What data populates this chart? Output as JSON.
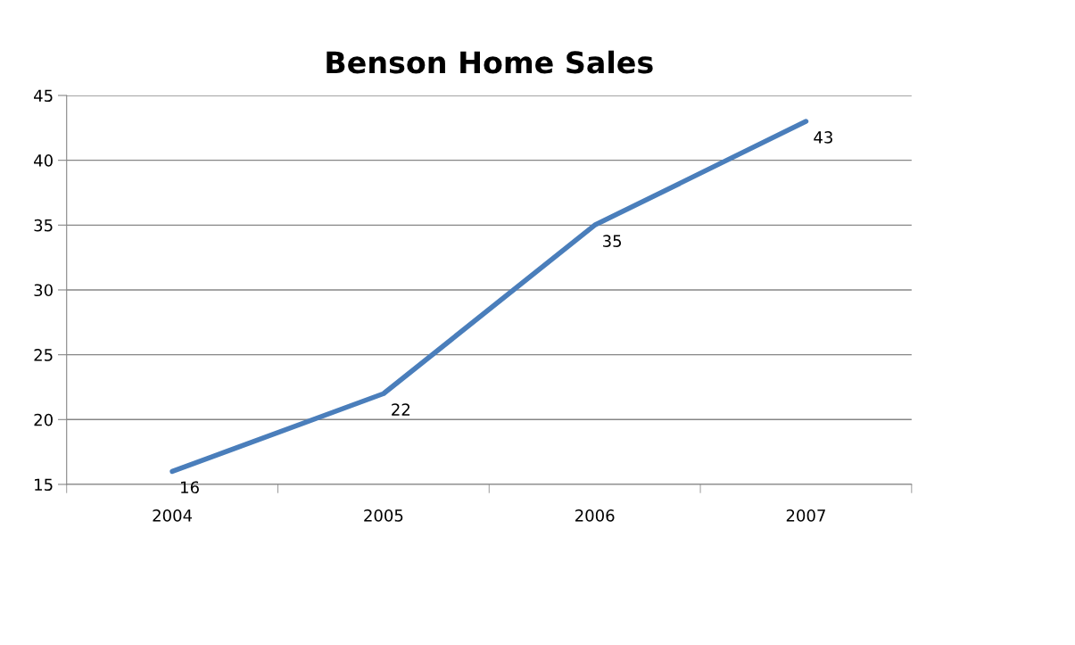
{
  "chart_data": {
    "type": "line",
    "title": "Benson Home Sales",
    "categories": [
      "2004",
      "2005",
      "2006",
      "2007"
    ],
    "series": [
      {
        "color": "#4a7ebb",
        "values": [
          16,
          22,
          35,
          43
        ]
      }
    ],
    "ylim": [
      15,
      45
    ],
    "yticks": [
      15,
      20,
      25,
      30,
      35,
      40,
      45
    ],
    "grid": "y",
    "data_labels": true,
    "marker": "none",
    "line_style": "solid"
  }
}
